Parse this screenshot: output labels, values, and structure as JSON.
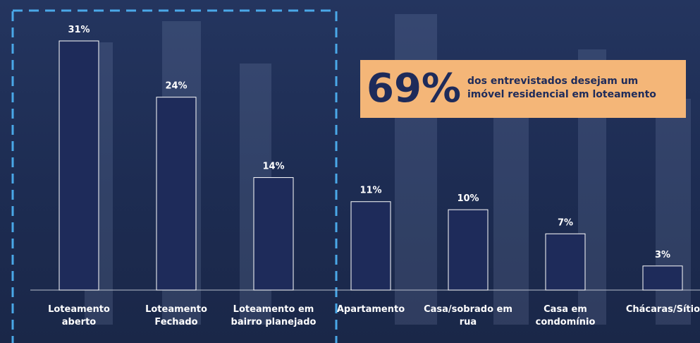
{
  "chart_data": {
    "type": "bar",
    "categories": [
      "Loteamento\naberto",
      "Loteamento\nFechado",
      "Loteamento em\nbairro planejado",
      "Apartamento",
      "Casa/sobrado em\nrua",
      "Casa em\ncondomínio",
      "Chácaras/Sítio"
    ],
    "values": [
      31,
      24,
      14,
      11,
      10,
      7,
      3
    ],
    "value_labels": [
      "31%",
      "24%",
      "14%",
      "11%",
      "10%",
      "7%",
      "3%"
    ],
    "color": "#1e2b5a",
    "highlight": {
      "label": "69%",
      "text": "dos entrevistados desejam um\nimóvel residencial em loteamento"
    }
  }
}
